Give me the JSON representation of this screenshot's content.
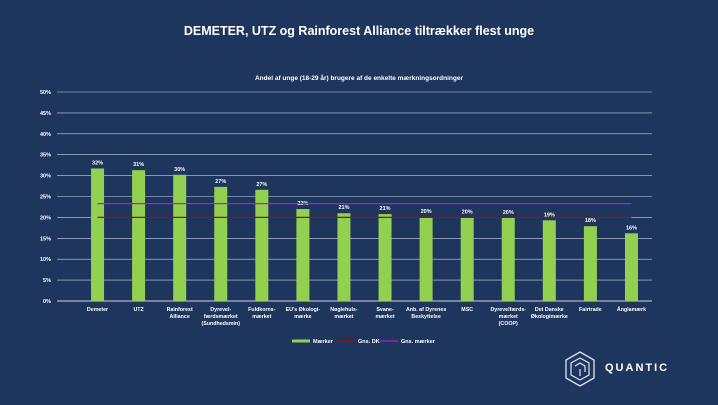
{
  "brand": "QUANTIC",
  "colors": {
    "bar": "#92d050",
    "avg_dk": "#c00000",
    "avg_marks": "#b01cd0",
    "grid": "#c9d3e6",
    "background": "#1e355e"
  },
  "chart_data": {
    "type": "bar",
    "title": "DEMETER, UTZ og Rainforest Alliance tiltrækker flest unge",
    "subtitle": "Andel af unge (18-29 år) brugere af de enkelte mærkningsordninger",
    "categories": [
      [
        "Demeter"
      ],
      [
        "UTZ"
      ],
      [
        "Rainforest",
        "Alliance"
      ],
      [
        "Dyrevel-",
        "færdsmærket",
        "(Sundhedsmin)"
      ],
      [
        "Fuldkorns-",
        "mærket"
      ],
      [
        "EU's Økologi-",
        "mærke"
      ],
      [
        "Nøglehuls-",
        "mærket"
      ],
      [
        "Svane-",
        "mærket"
      ],
      [
        "Anb. af Dyrenes",
        "Beskyttelse"
      ],
      [
        "MSC"
      ],
      [
        "Dyrevelfærds-",
        "mærket",
        "(COOP)"
      ],
      [
        "Det Danske",
        "Økologimærke"
      ],
      [
        "Fairtrade"
      ],
      [
        "Ånglamærk"
      ]
    ],
    "values": [
      31.7,
      31.3,
      30.2,
      27.3,
      26.6,
      22.0,
      21.0,
      20.8,
      20.1,
      20.0,
      19.9,
      19.3,
      17.9,
      16.2
    ],
    "data_labels": [
      "32%",
      "31%",
      "30%",
      "27%",
      "27%",
      "22%",
      "21%",
      "21%",
      "20%",
      "20%",
      "20%",
      "19%",
      "18%",
      "16%"
    ],
    "reference_lines": [
      {
        "name": "Gns. DK",
        "value": 20.0
      },
      {
        "name": "Gns. mærker",
        "value": 23.3
      }
    ],
    "series_name": "Mærker",
    "ylim": [
      0,
      50
    ],
    "yticks": [
      "0%",
      "5%",
      "10%",
      "15%",
      "20%",
      "25%",
      "30%",
      "35%",
      "40%",
      "45%",
      "50%"
    ],
    "grid": true,
    "legend_position": "bottom"
  }
}
